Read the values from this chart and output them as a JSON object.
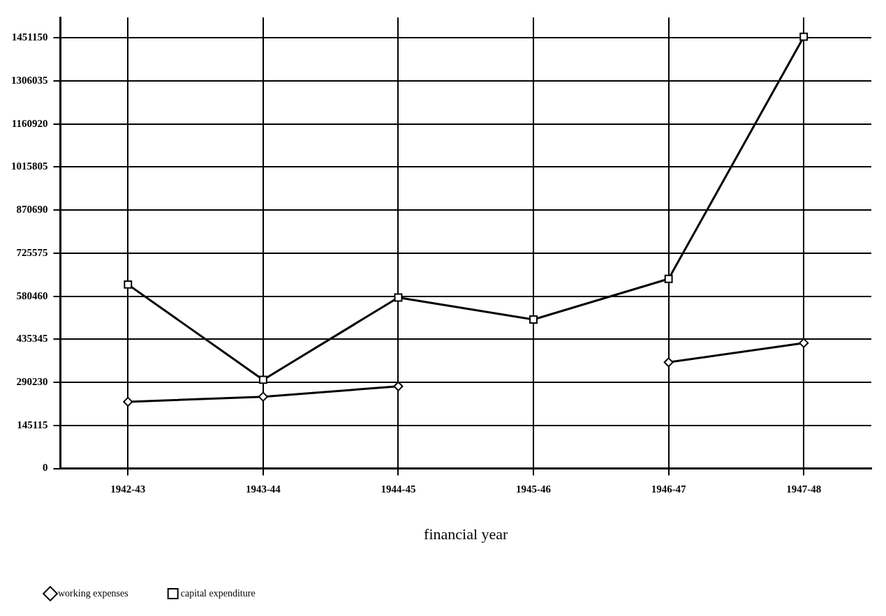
{
  "chart_data": {
    "type": "line",
    "xlabel": "financial year",
    "categories": [
      "1942-43",
      "1943-44",
      "1944-45",
      "1945-46",
      "1946-47",
      "1947-48"
    ],
    "series": [
      {
        "name": "working expenses",
        "color": "#000000",
        "marker": "diamond",
        "values": [
          225000,
          242000,
          277000,
          null,
          358000,
          423000
        ]
      },
      {
        "name": "capital expenditure",
        "color": "#000000",
        "marker": "square",
        "values": [
          620000,
          299000,
          576000,
          502000,
          639000,
          1455000
        ]
      }
    ],
    "ylim": [
      0,
      1520000
    ],
    "yticks": [
      0,
      145115,
      290230,
      435345,
      580460,
      725575,
      870690,
      1015805,
      1160920,
      1306035,
      1451150
    ],
    "grid": true,
    "legend": "bottom left",
    "line_style": "solid"
  }
}
